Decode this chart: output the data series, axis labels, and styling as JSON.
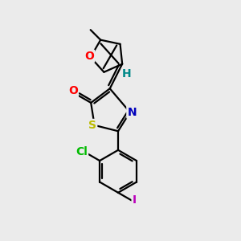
{
  "background_color": "#ebebeb",
  "bond_color": "#000000",
  "bond_width": 1.6,
  "atom_colors": {
    "O_furan": "#ff0000",
    "O_carbonyl": "#ff0000",
    "N": "#0000bb",
    "S": "#bbbb00",
    "Cl": "#00bb00",
    "I": "#bb00bb",
    "H": "#008888",
    "C": "#000000"
  },
  "font_size_atoms": 10,
  "font_size_small": 8.5
}
